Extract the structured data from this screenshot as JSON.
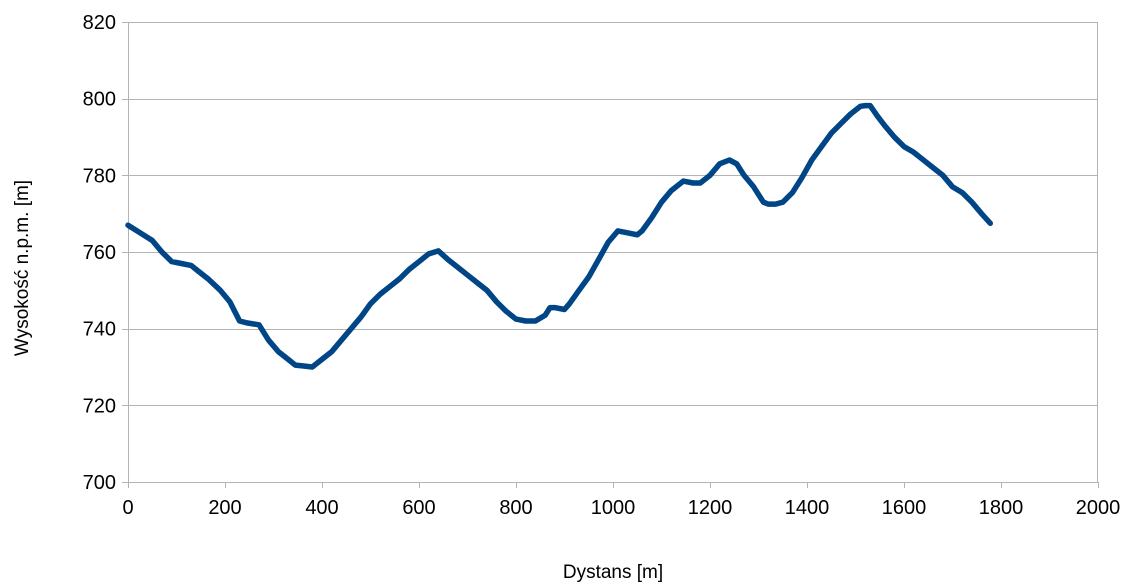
{
  "chart_data": {
    "type": "line",
    "title": "",
    "xlabel": "Dystans [m]",
    "ylabel": "Wysokość n.p.m. [m]",
    "xlim": [
      0,
      2000
    ],
    "ylim": [
      700,
      820
    ],
    "xticks": [
      0,
      200,
      400,
      600,
      800,
      1000,
      1200,
      1400,
      1600,
      1800,
      2000
    ],
    "yticks": [
      700,
      720,
      740,
      760,
      780,
      800,
      820
    ],
    "xtick_labels": [
      "0",
      "200",
      "400",
      "600",
      "800",
      "1000",
      "1200",
      "1400",
      "1600",
      "1800",
      "2000"
    ],
    "ytick_labels": [
      "700",
      "720",
      "740",
      "760",
      "780",
      "800",
      "820"
    ],
    "grid": true,
    "legend": false,
    "colors": {
      "line": "#004586",
      "grid": "#b3b3b3",
      "axis": "#b3b3b3"
    },
    "series": [
      {
        "x": [
          0,
          25,
          50,
          70,
          90,
          110,
          130,
          145,
          165,
          190,
          210,
          230,
          245,
          270,
          290,
          310,
          330,
          345,
          360,
          380,
          400,
          420,
          440,
          460,
          480,
          500,
          520,
          540,
          560,
          580,
          600,
          620,
          640,
          660,
          680,
          700,
          720,
          740,
          760,
          780,
          800,
          820,
          840,
          860,
          870,
          880,
          900,
          910,
          930,
          950,
          970,
          990,
          1010,
          1030,
          1050,
          1060,
          1080,
          1100,
          1120,
          1145,
          1165,
          1180,
          1200,
          1220,
          1240,
          1255,
          1270,
          1290,
          1310,
          1320,
          1335,
          1350,
          1370,
          1390,
          1410,
          1430,
          1450,
          1470,
          1490,
          1510,
          1520,
          1530,
          1545,
          1560,
          1580,
          1600,
          1620,
          1640,
          1660,
          1680,
          1700,
          1720,
          1740,
          1760,
          1778
        ],
        "y": [
          767,
          765,
          763,
          760,
          757.5,
          757,
          756.5,
          755,
          753,
          750,
          747,
          742,
          741.5,
          741,
          737,
          734,
          732,
          730.5,
          730.3,
          730,
          732,
          734,
          737,
          740,
          743,
          746.5,
          749,
          751,
          753,
          755.5,
          757.5,
          759.5,
          760.3,
          758,
          756,
          754,
          752,
          750,
          747,
          744.5,
          742.5,
          742,
          742,
          743.5,
          745.5,
          745.5,
          745,
          746.5,
          750,
          753.5,
          758,
          762.5,
          765.5,
          765,
          764.5,
          765.5,
          769,
          773,
          776,
          778.5,
          778,
          778,
          780,
          783,
          784,
          783,
          780,
          777,
          773,
          772.5,
          772.5,
          773,
          775.5,
          779.5,
          784,
          787.5,
          791,
          793.5,
          796,
          798,
          798.2,
          798.2,
          795.5,
          793,
          790,
          787.5,
          786,
          784,
          782,
          780,
          777,
          775.5,
          773,
          770,
          767.5
        ]
      }
    ]
  }
}
